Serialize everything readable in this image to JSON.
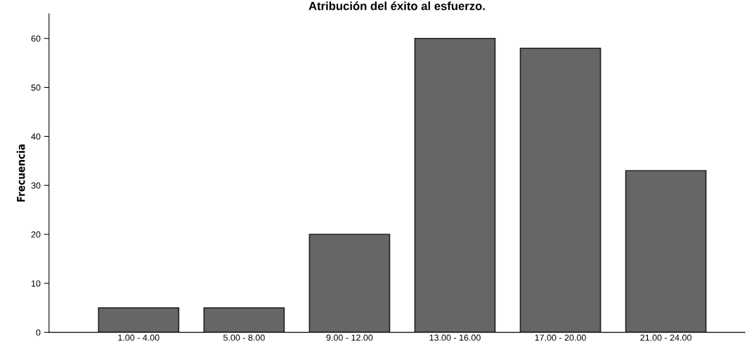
{
  "chart_data": {
    "type": "bar",
    "title": "Atribución del éxito al esfuerzo.",
    "ylabel": "Frecuencia",
    "categories": [
      "1.00 - 4.00",
      "5.00 - 8.00",
      "9.00 - 12.00",
      "13.00 - 16.00",
      "17.00 - 20.00",
      "21.00 - 24.00"
    ],
    "values": [
      5,
      5,
      20,
      60,
      58,
      33
    ],
    "color": "#666666",
    "ylim": [
      0,
      65
    ],
    "yticks": [
      0,
      10,
      20,
      30,
      40,
      50,
      60
    ],
    "grid": false
  }
}
